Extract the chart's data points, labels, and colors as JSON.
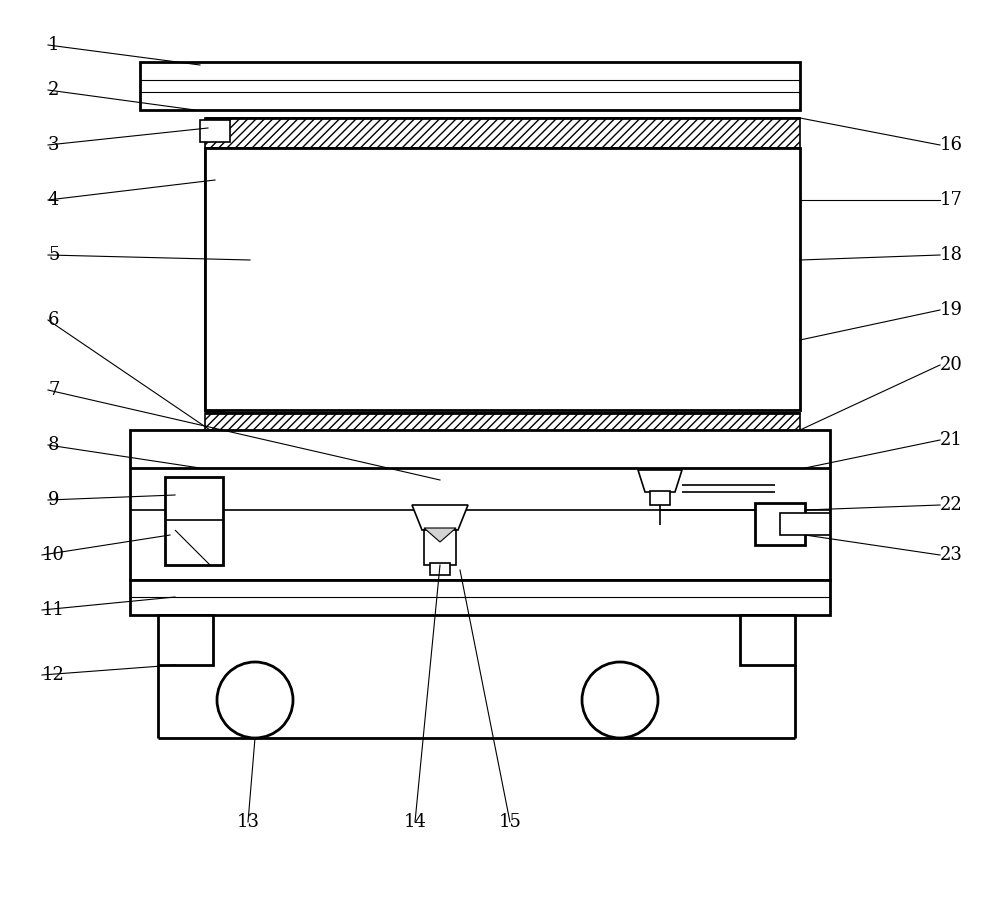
{
  "bg_color": "#ffffff",
  "lw": 1.2,
  "lw_thick": 2.0,
  "lw_thin": 0.8,
  "fontsize": 13
}
